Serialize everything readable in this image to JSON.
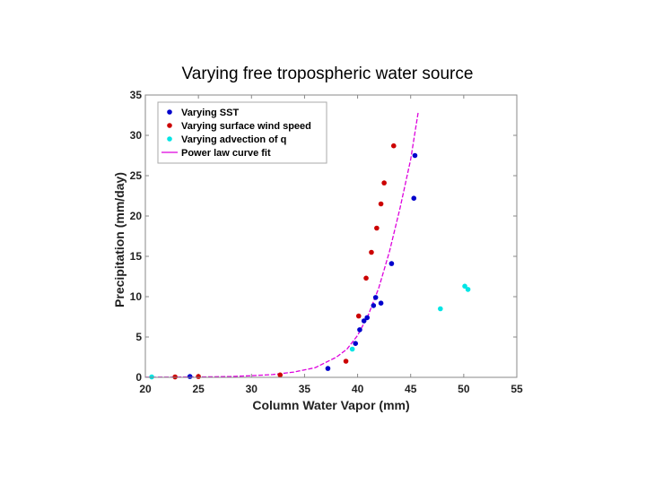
{
  "chart_data": {
    "type": "scatter",
    "title": "Varying free tropospheric water source",
    "xlabel": "Column Water Vapor (mm)",
    "ylabel": "Precipitation (mm/day)",
    "xlim": [
      20,
      55
    ],
    "ylim": [
      0,
      35
    ],
    "x_ticks": [
      "20",
      "25",
      "30",
      "35",
      "40",
      "45",
      "50",
      "55"
    ],
    "y_ticks": [
      "0",
      "5",
      "10",
      "15",
      "20",
      "25",
      "30",
      "35"
    ],
    "grid": false,
    "legend_position": "top-left",
    "series": [
      {
        "name": "Varying SST",
        "color": "#0000cc",
        "marker": "dot",
        "points": [
          [
            24.2,
            0.1
          ],
          [
            37.2,
            1.1
          ],
          [
            39.8,
            4.2
          ],
          [
            40.2,
            5.9
          ],
          [
            40.6,
            7.0
          ],
          [
            40.9,
            7.4
          ],
          [
            41.5,
            8.9
          ],
          [
            41.7,
            9.9
          ],
          [
            42.2,
            9.2
          ],
          [
            43.2,
            14.1
          ],
          [
            45.3,
            22.2
          ],
          [
            45.4,
            27.5
          ]
        ]
      },
      {
        "name": "Varying surface wind speed",
        "color": "#cc0000",
        "marker": "dot",
        "points": [
          [
            22.8,
            0.05
          ],
          [
            25.0,
            0.1
          ],
          [
            32.7,
            0.3
          ],
          [
            38.9,
            2.0
          ],
          [
            40.1,
            7.6
          ],
          [
            40.8,
            12.3
          ],
          [
            41.3,
            15.5
          ],
          [
            41.8,
            18.5
          ],
          [
            42.2,
            21.5
          ],
          [
            42.5,
            24.1
          ],
          [
            43.4,
            28.7
          ]
        ]
      },
      {
        "name": "Varying advection of q",
        "color": "#00e5e5",
        "marker": "dot",
        "points": [
          [
            20.6,
            0.05
          ],
          [
            39.5,
            3.5
          ],
          [
            47.8,
            8.5
          ],
          [
            50.1,
            11.3
          ],
          [
            50.4,
            10.9
          ]
        ]
      },
      {
        "name": "Power law curve fit",
        "color": "#dd00dd",
        "marker": "dashed-line",
        "curve": [
          [
            20.0,
            0.01
          ],
          [
            25.0,
            0.05
          ],
          [
            28.0,
            0.1
          ],
          [
            30.0,
            0.2
          ],
          [
            32.0,
            0.35
          ],
          [
            34.0,
            0.65
          ],
          [
            36.0,
            1.2
          ],
          [
            38.0,
            2.5
          ],
          [
            39.0,
            3.5
          ],
          [
            40.0,
            5.2
          ],
          [
            41.0,
            7.7
          ],
          [
            42.0,
            11.1
          ],
          [
            43.0,
            15.6
          ],
          [
            44.0,
            21.0
          ],
          [
            45.0,
            27.0
          ],
          [
            45.7,
            32.8
          ]
        ]
      }
    ]
  }
}
